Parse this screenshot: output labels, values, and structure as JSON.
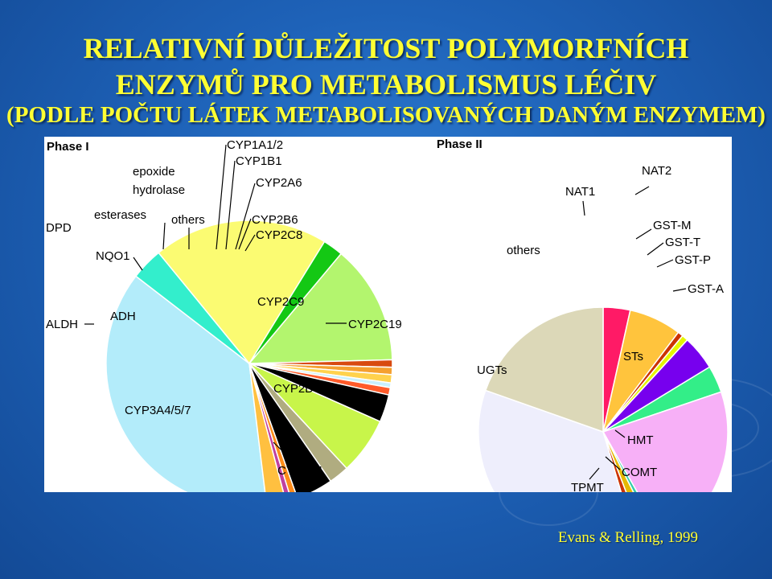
{
  "title": {
    "line1": "RELATIVNÍ DŮLEŽITOST POLYMORFNÍCH",
    "line2": "ENZYMŮ PRO METABOLISMUS LÉČIV",
    "line3": "(PODLE POČTU LÁTEK METABOLISOVANÝCH DANÝM ENZYMEM)"
  },
  "citation": "Evans & Relling, 1999",
  "colors": {
    "title": "#ffff33",
    "background": "#1e62b8",
    "panel": "#ffffff"
  },
  "chart_data": [
    {
      "type": "pie",
      "title": "Phase I",
      "slices": [
        {
          "label": "CYP3A4/5/7",
          "value": 36,
          "color": "#b3ecfa"
        },
        {
          "label": "CYP2E1",
          "value": 3.5,
          "color": "#33eecc"
        },
        {
          "label": "CYP2D6",
          "value": 19,
          "color": "#fbfb72"
        },
        {
          "label": "CYP2C19",
          "value": 2.2,
          "color": "#14c814"
        },
        {
          "label": "CYP2C9",
          "value": 13,
          "color": "#b3f56e"
        },
        {
          "label": "CYP2C8",
          "value": 0.8,
          "color": "#d84a10"
        },
        {
          "label": "CYP2B6",
          "value": 0.8,
          "color": "#f5a030"
        },
        {
          "label": "CYP2A6",
          "value": 0.9,
          "color": "#ffd24d"
        },
        {
          "label": "CYP1B1",
          "value": 0.5,
          "color": "#c8f0ff"
        },
        {
          "label": "CYP1A1/2",
          "value": 0.8,
          "color": "#ff5b2a"
        },
        {
          "label": "epoxide hydrolase",
          "value": 3,
          "color": "#000000"
        },
        {
          "label": "others",
          "value": 6.2,
          "color": "#c8f54a"
        },
        {
          "label": "esterases",
          "value": 2.2,
          "color": "#b0ac80"
        },
        {
          "label": "NQO1",
          "value": 4,
          "color": "#000000"
        },
        {
          "label": "DPD",
          "value": 0.7,
          "color": "#ff8c1a"
        },
        {
          "label": "ADH",
          "value": 0.6,
          "color": "#c040a0"
        },
        {
          "label": "ALDH",
          "value": 2.1,
          "color": "#ffc040"
        }
      ]
    },
    {
      "type": "pie",
      "title": "Phase II",
      "slices": [
        {
          "label": "NAT1",
          "value": 3.5,
          "color": "#ff1a66"
        },
        {
          "label": "NAT2",
          "value": 6.8,
          "color": "#ffc43d"
        },
        {
          "label": "GST-M",
          "value": 0.7,
          "color": "#cc3300"
        },
        {
          "label": "GST-T",
          "value": 0.8,
          "color": "#e6f500"
        },
        {
          "label": "GST-P",
          "value": 4.5,
          "color": "#7700ee"
        },
        {
          "label": "GST-A",
          "value": 3.5,
          "color": "#33ee88"
        },
        {
          "label": "STs",
          "value": 22,
          "color": "#f7b0f7"
        },
        {
          "label": "HMT",
          "value": 0.8,
          "color": "#33ccaa"
        },
        {
          "label": "COMT",
          "value": 1.6,
          "color": "#e6b800"
        },
        {
          "label": "TPMT",
          "value": 1.2,
          "color": "#cc3300"
        },
        {
          "label": "UGTs",
          "value": 35,
          "color": "#eeeefc"
        },
        {
          "label": "others",
          "value": 19.6,
          "color": "#dcd8b8"
        }
      ]
    }
  ]
}
